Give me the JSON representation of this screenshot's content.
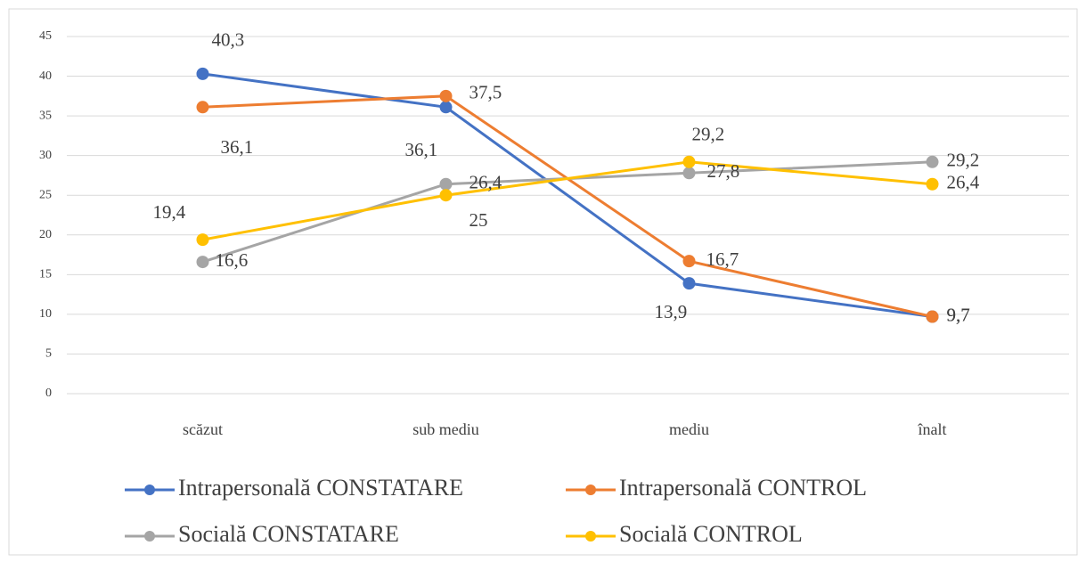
{
  "chart_data": {
    "type": "line",
    "categories": [
      "scăzut",
      "sub mediu",
      "mediu",
      "înalt"
    ],
    "series": [
      {
        "name": "Intrapersonală CONSTATARE",
        "color": "#4472c4",
        "values": [
          40.3,
          36.1,
          13.9,
          9.7
        ],
        "value_labels": [
          "40,3",
          "36,1",
          "13,9",
          "9,7"
        ]
      },
      {
        "name": "Intrapersonală CONTROL",
        "color": "#ed7d31",
        "values": [
          36.1,
          37.5,
          16.7,
          9.7
        ],
        "value_labels": [
          "36,1",
          "37,5",
          "16,7",
          "9,7"
        ]
      },
      {
        "name": "Socială CONSTATARE",
        "color": "#a5a5a5",
        "values": [
          16.6,
          26.4,
          27.8,
          29.2
        ],
        "value_labels": [
          "16,6",
          "26,4",
          "27,8",
          "29,2"
        ]
      },
      {
        "name": "Socială CONTROL",
        "color": "#ffc000",
        "values": [
          19.4,
          25,
          29.2,
          26.4
        ],
        "value_labels": [
          "19,4",
          "25",
          "29,2",
          "26,4"
        ]
      }
    ],
    "ylim": [
      0,
      45
    ],
    "yticks": [
      0,
      5,
      10,
      15,
      20,
      25,
      30,
      35,
      40,
      45
    ],
    "grid": true,
    "legend": "bottom"
  }
}
